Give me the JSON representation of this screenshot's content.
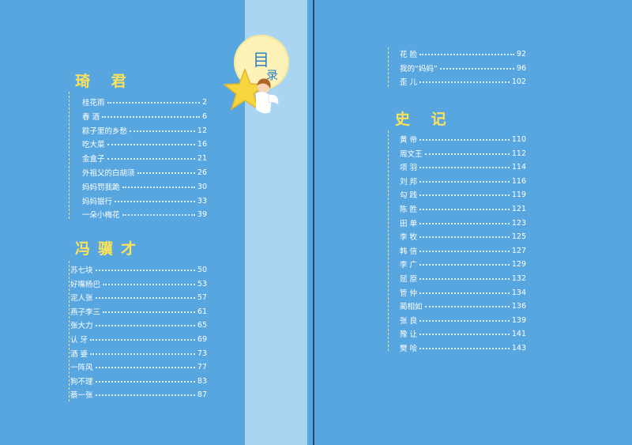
{
  "toc_title": {
    "main": "目",
    "sub": "录"
  },
  "sections": [
    {
      "id": "qijun",
      "title": "琦 君",
      "entries": [
        {
          "title": "桂花雨",
          "page": "2"
        },
        {
          "title": "春 酒",
          "page": "6"
        },
        {
          "title": "粽子里的乡愁",
          "page": "12"
        },
        {
          "title": "吃大菜",
          "page": "16"
        },
        {
          "title": "金盒子",
          "page": "21"
        },
        {
          "title": "外祖父的白胡须",
          "page": "26"
        },
        {
          "title": "妈妈罚我跪",
          "page": "30"
        },
        {
          "title": "妈妈银行",
          "page": "33"
        },
        {
          "title": "一朵小梅花",
          "page": "39"
        }
      ]
    },
    {
      "id": "fengjicai",
      "title": "冯骥才",
      "entries": [
        {
          "title": "苏七块",
          "page": "50"
        },
        {
          "title": "好嘴杨巴",
          "page": "53"
        },
        {
          "title": "泥人张",
          "page": "57"
        },
        {
          "title": "燕子李三",
          "page": "61"
        },
        {
          "title": "张大力",
          "page": "65"
        },
        {
          "title": "认 牙",
          "page": "69"
        },
        {
          "title": "酒 婆",
          "page": "73"
        },
        {
          "title": "一阵风",
          "page": "77"
        },
        {
          "title": "狗不理",
          "page": "83"
        },
        {
          "title": "蔡一张",
          "page": "87"
        }
      ]
    },
    {
      "id": "fengjicai-cont",
      "title": "",
      "entries": [
        {
          "title": "花 脸",
          "page": "92"
        },
        {
          "title": "我的“妈妈”",
          "page": "96"
        },
        {
          "title": "歪 儿",
          "page": "102"
        }
      ]
    },
    {
      "id": "shiji",
      "title": "史 记",
      "entries": [
        {
          "title": "黄 帝",
          "page": "110"
        },
        {
          "title": "周文王",
          "page": "112"
        },
        {
          "title": "项 羽",
          "page": "114"
        },
        {
          "title": "刘 邦",
          "page": "116"
        },
        {
          "title": "勾 践",
          "page": "119"
        },
        {
          "title": "陈 胜",
          "page": "121"
        },
        {
          "title": "田 单",
          "page": "123"
        },
        {
          "title": "李 牧",
          "page": "125"
        },
        {
          "title": "韩 信",
          "page": "127"
        },
        {
          "title": "李 广",
          "page": "129"
        },
        {
          "title": "屈 原",
          "page": "132"
        },
        {
          "title": "管 仲",
          "page": "134"
        },
        {
          "title": "蔺相如",
          "page": "136"
        },
        {
          "title": "张 良",
          "page": "139"
        },
        {
          "title": "豫 让",
          "page": "141"
        },
        {
          "title": "樊 哙",
          "page": "143"
        }
      ]
    }
  ],
  "colors": {
    "background": "#58a6e0",
    "ribbon": "#a9d5f2",
    "heading": "#fbe25a",
    "text": "#ffffff"
  }
}
